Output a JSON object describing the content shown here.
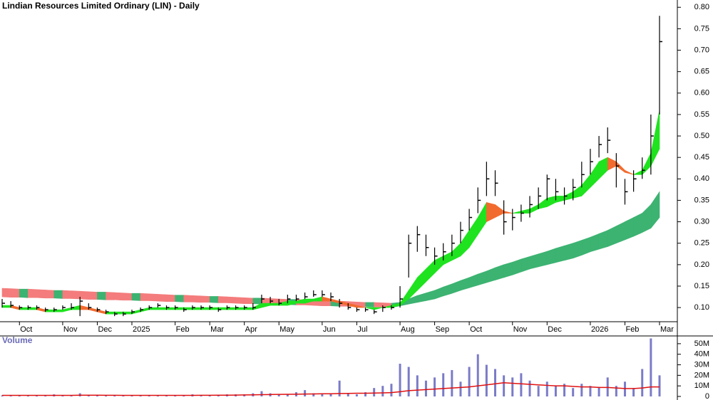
{
  "chart_data": {
    "type": "hlc",
    "title": "Lindian Resources Limited Ordinary (LIN) - Daily",
    "categories": [
      null,
      null,
      "Oct",
      null,
      null,
      null,
      null,
      "Nov",
      null,
      null,
      null,
      "Dec",
      null,
      null,
      null,
      "2025",
      null,
      null,
      null,
      null,
      "Feb",
      null,
      null,
      null,
      "Mar",
      null,
      null,
      null,
      "Apr",
      null,
      null,
      null,
      "May",
      null,
      null,
      null,
      null,
      "Jun",
      null,
      null,
      null,
      "Jul",
      null,
      null,
      null,
      null,
      "Aug",
      null,
      null,
      null,
      "Sep",
      null,
      null,
      null,
      "Oct",
      null,
      null,
      null,
      null,
      "Nov",
      null,
      null,
      null,
      "Dec",
      null,
      null,
      null,
      null,
      "2026",
      null,
      null,
      null,
      "Feb",
      null,
      null,
      null,
      "Mar"
    ],
    "high": [
      0.12,
      0.115,
      0.105,
      0.105,
      0.105,
      0.1,
      0.1,
      0.105,
      0.11,
      0.125,
      0.11,
      0.1,
      0.095,
      0.09,
      0.09,
      0.095,
      0.1,
      0.105,
      0.11,
      0.105,
      0.105,
      0.1,
      0.105,
      0.105,
      0.105,
      0.1,
      0.105,
      0.105,
      0.105,
      0.11,
      0.13,
      0.125,
      0.12,
      0.13,
      0.13,
      0.135,
      0.14,
      0.14,
      0.135,
      0.12,
      0.11,
      0.1,
      0.1,
      0.095,
      0.105,
      0.105,
      0.15,
      0.27,
      0.29,
      0.27,
      0.24,
      0.25,
      0.27,
      0.3,
      0.33,
      0.38,
      0.44,
      0.42,
      0.35,
      0.33,
      0.34,
      0.36,
      0.38,
      0.41,
      0.4,
      0.38,
      0.4,
      0.44,
      0.47,
      0.5,
      0.52,
      0.46,
      0.4,
      0.42,
      0.45,
      0.55,
      0.78
    ],
    "low": [
      0.1,
      0.1,
      0.095,
      0.095,
      0.095,
      0.09,
      0.09,
      0.095,
      0.095,
      0.08,
      0.095,
      0.09,
      0.085,
      0.08,
      0.08,
      0.085,
      0.09,
      0.095,
      0.1,
      0.095,
      0.095,
      0.09,
      0.095,
      0.095,
      0.095,
      0.09,
      0.095,
      0.095,
      0.095,
      0.095,
      0.11,
      0.11,
      0.105,
      0.11,
      0.115,
      0.12,
      0.125,
      0.125,
      0.115,
      0.1,
      0.095,
      0.09,
      0.09,
      0.085,
      0.09,
      0.095,
      0.1,
      0.17,
      0.23,
      0.22,
      0.2,
      0.21,
      0.22,
      0.25,
      0.28,
      0.32,
      0.36,
      0.36,
      0.27,
      0.28,
      0.3,
      0.31,
      0.33,
      0.35,
      0.35,
      0.34,
      0.35,
      0.38,
      0.41,
      0.45,
      0.46,
      0.38,
      0.34,
      0.37,
      0.4,
      0.41,
      0.55
    ],
    "close": [
      0.11,
      0.105,
      0.1,
      0.1,
      0.1,
      0.095,
      0.095,
      0.1,
      0.1,
      0.115,
      0.1,
      0.095,
      0.09,
      0.085,
      0.085,
      0.09,
      0.095,
      0.1,
      0.105,
      0.1,
      0.1,
      0.095,
      0.1,
      0.1,
      0.1,
      0.095,
      0.1,
      0.1,
      0.1,
      0.1,
      0.12,
      0.115,
      0.11,
      0.12,
      0.12,
      0.125,
      0.13,
      0.13,
      0.125,
      0.11,
      0.1,
      0.095,
      0.095,
      0.09,
      0.1,
      0.1,
      0.12,
      0.25,
      0.27,
      0.24,
      0.22,
      0.23,
      0.25,
      0.28,
      0.31,
      0.35,
      0.4,
      0.39,
      0.3,
      0.31,
      0.32,
      0.34,
      0.36,
      0.4,
      0.37,
      0.36,
      0.38,
      0.41,
      0.44,
      0.48,
      0.49,
      0.43,
      0.37,
      0.4,
      0.42,
      0.5,
      0.72
    ],
    "bar_color": "#000000",
    "bands": [
      {
        "upper": [
          0.145,
          0.144,
          0.143,
          0.143,
          0.142,
          0.141,
          0.14,
          0.14,
          0.139,
          0.138,
          0.137,
          0.136,
          0.136,
          0.135,
          0.134,
          0.133,
          0.133,
          0.132,
          0.131,
          0.13,
          0.129,
          0.129,
          0.128,
          0.127,
          0.126,
          0.126,
          0.125,
          0.124,
          0.123,
          0.122,
          0.122,
          0.121,
          0.12,
          0.119,
          0.119,
          0.118,
          0.117,
          0.116,
          0.115,
          0.115,
          0.114,
          0.113,
          0.112,
          0.112,
          0.111,
          0.11,
          0.112,
          0.12,
          0.128,
          0.134,
          0.14,
          0.148,
          0.155,
          0.163,
          0.17,
          0.178,
          0.185,
          0.193,
          0.2,
          0.206,
          0.213,
          0.219,
          0.225,
          0.231,
          0.238,
          0.244,
          0.25,
          0.257,
          0.264,
          0.272,
          0.28,
          0.29,
          0.3,
          0.31,
          0.32,
          0.34,
          0.37
        ],
        "lower": [
          0.125,
          0.124,
          0.124,
          0.123,
          0.123,
          0.122,
          0.122,
          0.121,
          0.121,
          0.12,
          0.119,
          0.119,
          0.118,
          0.118,
          0.117,
          0.117,
          0.116,
          0.116,
          0.115,
          0.114,
          0.114,
          0.113,
          0.113,
          0.112,
          0.112,
          0.111,
          0.111,
          0.11,
          0.109,
          0.109,
          0.108,
          0.108,
          0.107,
          0.107,
          0.106,
          0.106,
          0.105,
          0.104,
          0.104,
          0.103,
          0.103,
          0.102,
          0.102,
          0.101,
          0.101,
          0.1,
          0.104,
          0.108,
          0.112,
          0.116,
          0.12,
          0.127,
          0.133,
          0.14,
          0.146,
          0.152,
          0.158,
          0.164,
          0.17,
          0.176,
          0.183,
          0.19,
          0.195,
          0.2,
          0.205,
          0.21,
          0.215,
          0.222,
          0.23,
          0.236,
          0.242,
          0.25,
          0.258,
          0.266,
          0.275,
          0.285,
          0.31
        ],
        "up_color": "#3cb371",
        "down_color": "#f47c7c"
      },
      {
        "upper": [
          0.105,
          0.105,
          0.1,
          0.1,
          0.1,
          0.095,
          0.095,
          0.095,
          0.1,
          0.105,
          0.1,
          0.095,
          0.09,
          0.09,
          0.09,
          0.09,
          0.095,
          0.1,
          0.1,
          0.1,
          0.1,
          0.1,
          0.1,
          0.1,
          0.1,
          0.1,
          0.1,
          0.1,
          0.1,
          0.1,
          0.11,
          0.11,
          0.11,
          0.115,
          0.115,
          0.12,
          0.12,
          0.125,
          0.12,
          0.115,
          0.11,
          0.105,
          0.1,
          0.1,
          0.1,
          0.105,
          0.11,
          0.14,
          0.17,
          0.19,
          0.21,
          0.22,
          0.23,
          0.25,
          0.28,
          0.31,
          0.345,
          0.34,
          0.325,
          0.32,
          0.325,
          0.33,
          0.34,
          0.355,
          0.36,
          0.36,
          0.37,
          0.385,
          0.41,
          0.44,
          0.45,
          0.44,
          0.42,
          0.41,
          0.42,
          0.46,
          0.56
        ],
        "lower": [
          0.1,
          0.1,
          0.095,
          0.095,
          0.095,
          0.09,
          0.09,
          0.09,
          0.095,
          0.095,
          0.095,
          0.09,
          0.085,
          0.085,
          0.085,
          0.085,
          0.09,
          0.095,
          0.095,
          0.095,
          0.095,
          0.095,
          0.095,
          0.095,
          0.095,
          0.095,
          0.095,
          0.095,
          0.095,
          0.095,
          0.1,
          0.105,
          0.105,
          0.105,
          0.11,
          0.11,
          0.115,
          0.115,
          0.115,
          0.11,
          0.105,
          0.1,
          0.1,
          0.095,
          0.1,
          0.1,
          0.105,
          0.12,
          0.14,
          0.16,
          0.18,
          0.2,
          0.21,
          0.22,
          0.24,
          0.27,
          0.3,
          0.31,
          0.32,
          0.32,
          0.32,
          0.32,
          0.33,
          0.335,
          0.345,
          0.35,
          0.355,
          0.36,
          0.38,
          0.4,
          0.42,
          0.43,
          0.415,
          0.41,
          0.41,
          0.43,
          0.47
        ],
        "up_color": "#1ee31e",
        "down_color": "#f26b2e"
      }
    ],
    "ylim": [
      0.067,
      0.817
    ],
    "yticks": [
      {
        "value": 0.1,
        "label": "0.10"
      },
      {
        "value": 0.15,
        "label": "0.15"
      },
      {
        "value": 0.2,
        "label": "0.20"
      },
      {
        "value": 0.25,
        "label": "0.25"
      },
      {
        "value": 0.3,
        "label": "0.30"
      },
      {
        "value": 0.35,
        "label": "0.35"
      },
      {
        "value": 0.4,
        "label": "0.40"
      },
      {
        "value": 0.45,
        "label": "0.45"
      },
      {
        "value": 0.5,
        "label": "0.50"
      },
      {
        "value": 0.55,
        "label": "0.55"
      },
      {
        "value": 0.6,
        "label": "0.60"
      },
      {
        "value": 0.65,
        "label": "0.65"
      },
      {
        "value": 0.7,
        "label": "0.70"
      },
      {
        "value": 0.75,
        "label": "0.75"
      },
      {
        "value": 0.8,
        "label": "0.80"
      }
    ],
    "volume": {
      "title": "Volume",
      "values": [
        1,
        1,
        1,
        1,
        1,
        1,
        2,
        1,
        1,
        3,
        1,
        1,
        1,
        1,
        1,
        1,
        1,
        1,
        1,
        1,
        1,
        1,
        2,
        1,
        1,
        1,
        2,
        2,
        2,
        3,
        5,
        3,
        2,
        2,
        4,
        6,
        3,
        2,
        2,
        15,
        3,
        2,
        4,
        8,
        10,
        12,
        31,
        28,
        20,
        15,
        18,
        22,
        25,
        14,
        28,
        40,
        30,
        26,
        20,
        18,
        22,
        15,
        10,
        14,
        10,
        12,
        8,
        12,
        10,
        9,
        18,
        10,
        14,
        8,
        26,
        55,
        20
      ],
      "average": [
        1,
        1,
        1,
        1,
        1,
        1,
        1,
        1,
        1,
        1.2,
        1.2,
        1.2,
        1.1,
        1.1,
        1,
        1,
        1,
        1,
        1,
        1,
        1,
        1,
        1,
        1.1,
        1.1,
        1.2,
        1.2,
        1.3,
        1.4,
        1.5,
        1.7,
        1.8,
        1.9,
        2,
        2.1,
        2.3,
        2.4,
        2.5,
        2.5,
        2.8,
        2.9,
        3,
        3,
        3.2,
        3.4,
        3.6,
        4.5,
        5.5,
        6,
        6.5,
        7,
        7.5,
        8,
        8.5,
        9,
        10,
        11,
        12,
        13,
        12.5,
        12,
        11.5,
        11,
        10.5,
        10,
        10,
        9.5,
        9,
        9,
        8.5,
        8.5,
        8,
        7.5,
        7.5,
        8,
        9,
        9
      ],
      "color": "#7b7bc8",
      "average_color": "#e01010",
      "ylim": [
        0,
        56
      ],
      "yticks": [
        0,
        {
          "value": 10,
          "label": "10M"
        },
        {
          "value": 20,
          "label": "20M"
        },
        {
          "value": 30,
          "label": "30M"
        },
        {
          "value": 40,
          "label": "40M"
        },
        {
          "value": 50,
          "label": "50M"
        }
      ]
    }
  }
}
